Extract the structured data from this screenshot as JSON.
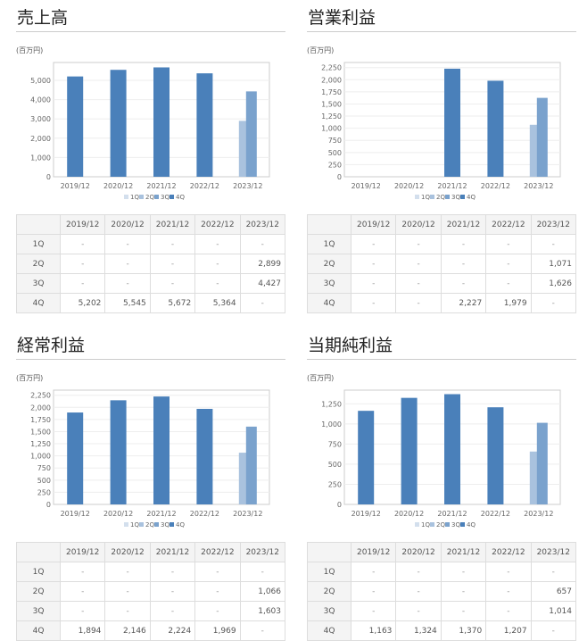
{
  "unit_label": "(百万円)",
  "quarters": [
    "1Q",
    "2Q",
    "3Q",
    "4Q"
  ],
  "colors": {
    "1Q": "#d3dfed",
    "2Q": "#a9c2de",
    "3Q": "#7aa2cd",
    "4Q": "#4a80ba"
  },
  "chart_data": [
    {
      "type": "bar",
      "title": "売上高",
      "ylabel": "(百万円)",
      "categories": [
        "2019/12",
        "2020/12",
        "2021/12",
        "2022/12",
        "2023/12"
      ],
      "yticks": [
        0,
        1000,
        2000,
        3000,
        4000,
        5000
      ],
      "ylim": [
        0,
        5926
      ],
      "grid": true,
      "legend": "bottom",
      "series": [
        {
          "name": "1Q",
          "values": [
            null,
            null,
            null,
            null,
            null
          ]
        },
        {
          "name": "2Q",
          "values": [
            null,
            null,
            null,
            null,
            2899
          ]
        },
        {
          "name": "3Q",
          "values": [
            null,
            null,
            null,
            null,
            4427
          ]
        },
        {
          "name": "4Q",
          "values": [
            5202,
            5545,
            5672,
            5364,
            null
          ]
        }
      ]
    },
    {
      "type": "bar",
      "title": "営業利益",
      "ylabel": "(百万円)",
      "categories": [
        "2019/12",
        "2020/12",
        "2021/12",
        "2022/12",
        "2023/12"
      ],
      "yticks": [
        0,
        250,
        500,
        750,
        1000,
        1250,
        1500,
        1750,
        2000,
        2250
      ],
      "ylim": [
        0,
        2355
      ],
      "grid": true,
      "legend": "bottom",
      "series": [
        {
          "name": "1Q",
          "values": [
            null,
            null,
            null,
            null,
            null
          ]
        },
        {
          "name": "2Q",
          "values": [
            null,
            null,
            null,
            null,
            1071
          ]
        },
        {
          "name": "3Q",
          "values": [
            null,
            null,
            null,
            null,
            1626
          ]
        },
        {
          "name": "4Q",
          "values": [
            null,
            null,
            2227,
            1979,
            null
          ]
        }
      ]
    },
    {
      "type": "bar",
      "title": "経常利益",
      "ylabel": "(百万円)",
      "categories": [
        "2019/12",
        "2020/12",
        "2021/12",
        "2022/12",
        "2023/12"
      ],
      "yticks": [
        0,
        250,
        500,
        750,
        1000,
        1250,
        1500,
        1750,
        2000,
        2250
      ],
      "ylim": [
        0,
        2355
      ],
      "grid": true,
      "legend": "bottom",
      "series": [
        {
          "name": "1Q",
          "values": [
            null,
            null,
            null,
            null,
            null
          ]
        },
        {
          "name": "2Q",
          "values": [
            null,
            null,
            null,
            null,
            1066
          ]
        },
        {
          "name": "3Q",
          "values": [
            null,
            null,
            null,
            null,
            1603
          ]
        },
        {
          "name": "4Q",
          "values": [
            1894,
            2146,
            2224,
            1969,
            null
          ]
        }
      ]
    },
    {
      "type": "bar",
      "title": "当期純利益",
      "ylabel": "(百万円)",
      "categories": [
        "2019/12",
        "2020/12",
        "2021/12",
        "2022/12",
        "2023/12"
      ],
      "yticks": [
        0,
        250,
        500,
        750,
        1000,
        1250
      ],
      "ylim": [
        0,
        1420
      ],
      "grid": true,
      "legend": "bottom",
      "series": [
        {
          "name": "1Q",
          "values": [
            null,
            null,
            null,
            null,
            null
          ]
        },
        {
          "name": "2Q",
          "values": [
            null,
            null,
            null,
            null,
            657
          ]
        },
        {
          "name": "3Q",
          "values": [
            null,
            null,
            null,
            null,
            1014
          ]
        },
        {
          "name": "4Q",
          "values": [
            1163,
            1324,
            1370,
            1207,
            null
          ]
        }
      ]
    }
  ],
  "tables": [
    {
      "rows": [
        [
          "1Q",
          "-",
          "-",
          "-",
          "-",
          "-"
        ],
        [
          "2Q",
          "-",
          "-",
          "-",
          "-",
          "2,899"
        ],
        [
          "3Q",
          "-",
          "-",
          "-",
          "-",
          "4,427"
        ],
        [
          "4Q",
          "5,202",
          "5,545",
          "5,672",
          "5,364",
          "-"
        ]
      ]
    },
    {
      "rows": [
        [
          "1Q",
          "-",
          "-",
          "-",
          "-",
          "-"
        ],
        [
          "2Q",
          "-",
          "-",
          "-",
          "-",
          "1,071"
        ],
        [
          "3Q",
          "-",
          "-",
          "-",
          "-",
          "1,626"
        ],
        [
          "4Q",
          "-",
          "-",
          "2,227",
          "1,979",
          "-"
        ]
      ]
    },
    {
      "rows": [
        [
          "1Q",
          "-",
          "-",
          "-",
          "-",
          "-"
        ],
        [
          "2Q",
          "-",
          "-",
          "-",
          "-",
          "1,066"
        ],
        [
          "3Q",
          "-",
          "-",
          "-",
          "-",
          "1,603"
        ],
        [
          "4Q",
          "1,894",
          "2,146",
          "2,224",
          "1,969",
          "-"
        ]
      ]
    },
    {
      "rows": [
        [
          "1Q",
          "-",
          "-",
          "-",
          "-",
          "-"
        ],
        [
          "2Q",
          "-",
          "-",
          "-",
          "-",
          "657"
        ],
        [
          "3Q",
          "-",
          "-",
          "-",
          "-",
          "1,014"
        ],
        [
          "4Q",
          "1,163",
          "1,324",
          "1,370",
          "1,207",
          "-"
        ]
      ]
    }
  ]
}
